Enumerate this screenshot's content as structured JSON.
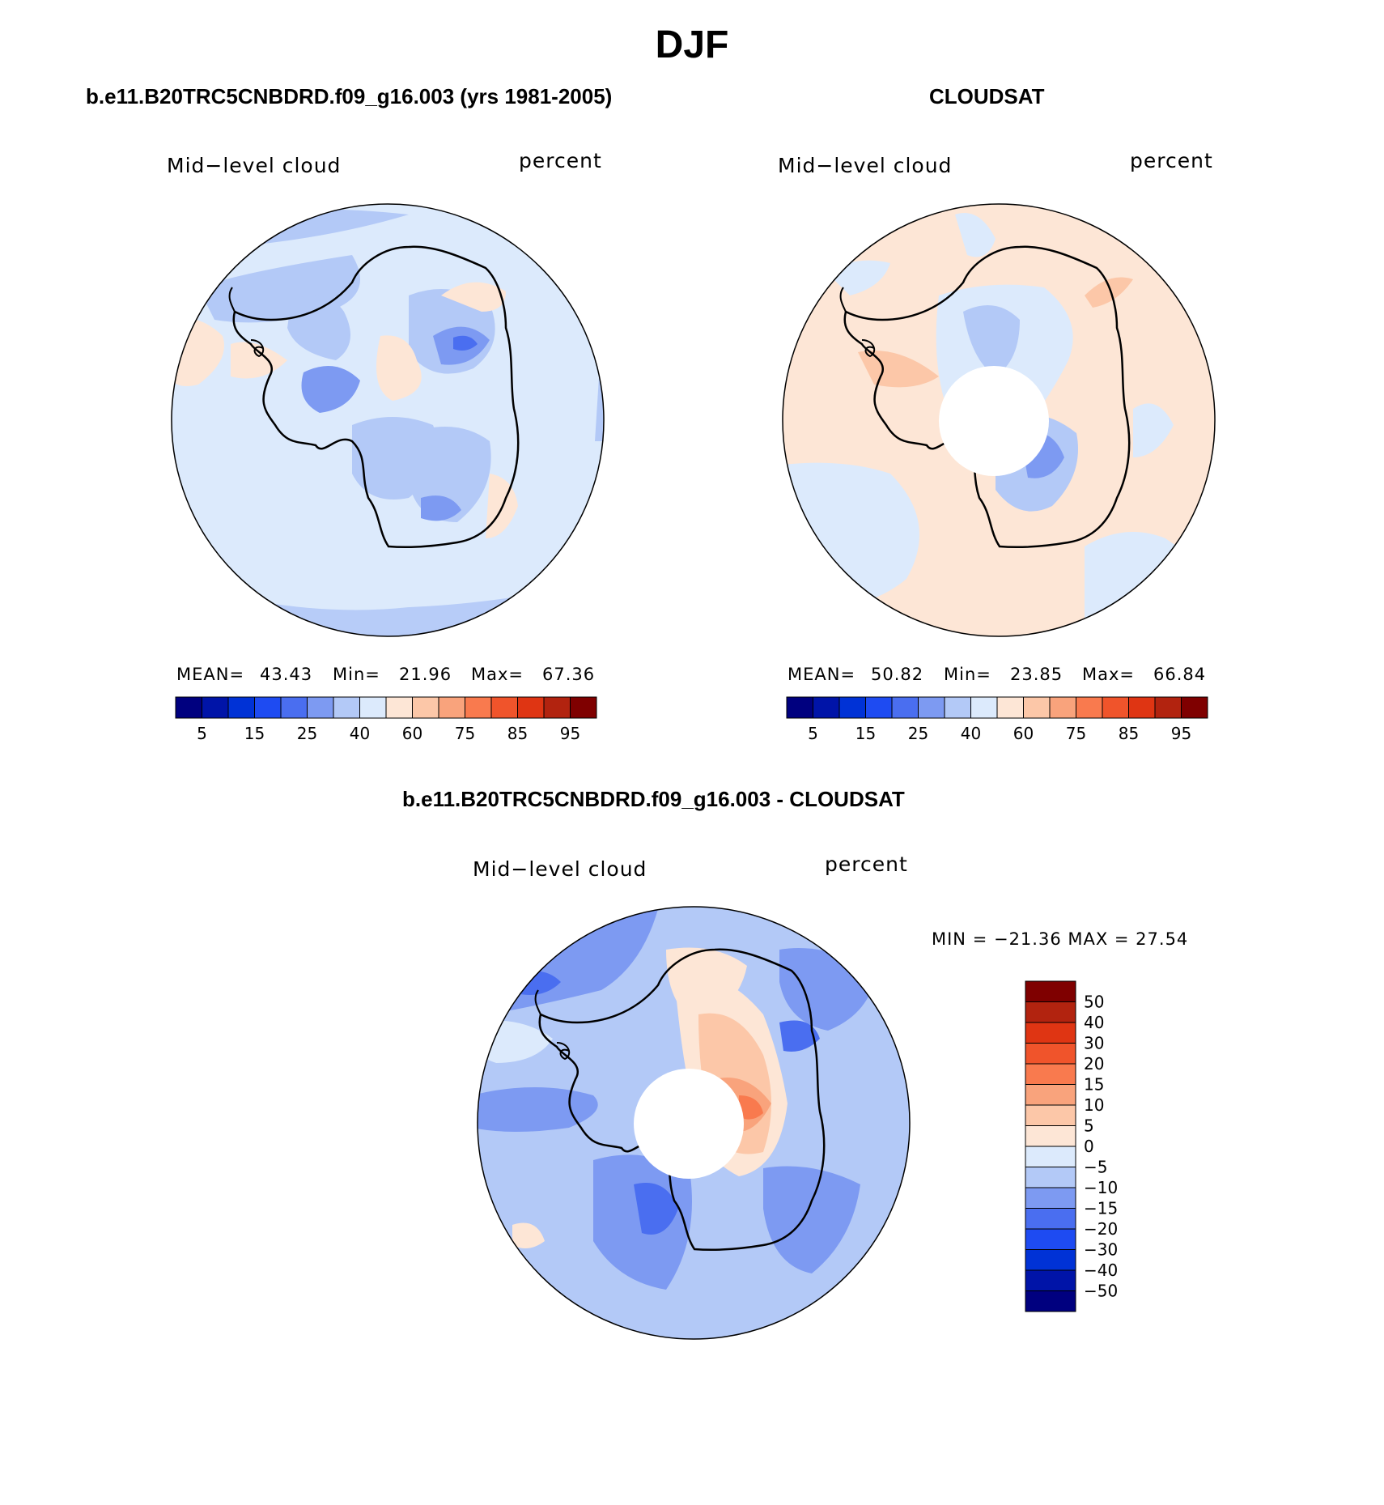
{
  "figure": {
    "title": "DJF"
  },
  "colors": {
    "abs_scale": [
      "#00007f",
      "#0014a8",
      "#0032d6",
      "#1e4bf2",
      "#4a6ef0",
      "#7d9af2",
      "#b3c9f7",
      "#dceafc",
      "#fde6d6",
      "#fcc7a8",
      "#f9a37c",
      "#f97a4e",
      "#f0542b",
      "#df3513",
      "#b2230f",
      "#7f0000"
    ],
    "diff_scale": [
      "#00007f",
      "#0014a8",
      "#0032d6",
      "#1e4bf2",
      "#4a6ef0",
      "#7d9af2",
      "#b3c9f7",
      "#dceafc",
      "#fde6d6",
      "#fcc7a8",
      "#f9a37c",
      "#f97a4e",
      "#f0542b",
      "#df3513",
      "#b2230f",
      "#7f0000"
    ],
    "land_outline": "#000000"
  },
  "panels": [
    {
      "title": "b.e11.B20TRC5CNBDRD.f09_g16.003 (yrs 1981-2005)",
      "variable_label": "Mid−level cloud",
      "units_label": "percent",
      "stats": {
        "mean_label": "MEAN=",
        "mean": "43.43",
        "min_label": "Min=",
        "min": "21.96",
        "max_label": "Max=",
        "max": "67.36"
      },
      "colorbar_ticks": [
        "5",
        "15",
        "25",
        "40",
        "60",
        "75",
        "85",
        "95"
      ]
    },
    {
      "title": "CLOUDSAT",
      "variable_label": "Mid−level cloud",
      "units_label": "percent",
      "stats": {
        "mean_label": "MEAN=",
        "mean": "50.82",
        "min_label": "Min=",
        "min": "23.85",
        "max_label": "Max=",
        "max": "66.84"
      },
      "colorbar_ticks": [
        "5",
        "15",
        "25",
        "40",
        "60",
        "75",
        "85",
        "95"
      ]
    },
    {
      "title": "b.e11.B20TRC5CNBDRD.f09_g16.003 - CLOUDSAT",
      "variable_label": "Mid−level cloud",
      "units_label": "percent",
      "minmax_text": "MIN = −21.36 MAX =   27.54",
      "colorbar_ticks": [
        "50",
        "40",
        "30",
        "20",
        "15",
        "10",
        "5",
        "0",
        "−5",
        "−10",
        "−15",
        "−20",
        "−30",
        "−40",
        "−50"
      ]
    }
  ],
  "chart_data": [
    {
      "type": "heatmap",
      "projection": "south polar stereographic",
      "title": "b.e11.B20TRC5CNBDRD.f09_g16.003 (yrs 1981-2005)",
      "variable": "Mid−level cloud",
      "units": "percent",
      "mean": 43.43,
      "min": 21.96,
      "max": 67.36,
      "contour_levels": [
        5,
        10,
        15,
        20,
        25,
        30,
        40,
        50,
        60,
        70,
        75,
        80,
        85,
        90,
        95
      ],
      "colorbar_tick_labels": [
        "5",
        "15",
        "25",
        "40",
        "60",
        "75",
        "85",
        "95"
      ]
    },
    {
      "type": "heatmap",
      "projection": "south polar stereographic",
      "title": "CLOUDSAT",
      "variable": "Mid−level cloud",
      "units": "percent",
      "mean": 50.82,
      "min": 23.85,
      "max": 66.84,
      "contour_levels": [
        5,
        10,
        15,
        20,
        25,
        30,
        40,
        50,
        60,
        70,
        75,
        80,
        85,
        90,
        95
      ],
      "colorbar_tick_labels": [
        "5",
        "15",
        "25",
        "40",
        "60",
        "75",
        "85",
        "95"
      ],
      "missing_data_region": "polar cap near South Pole"
    },
    {
      "type": "heatmap",
      "projection": "south polar stereographic",
      "title": "b.e11.B20TRC5CNBDRD.f09_g16.003 - CLOUDSAT",
      "variable": "Mid−level cloud",
      "units": "percent",
      "min": -21.36,
      "max": 27.54,
      "contour_levels": [
        -50,
        -40,
        -30,
        -20,
        -15,
        -10,
        -5,
        0,
        5,
        10,
        15,
        20,
        30,
        40,
        50
      ],
      "missing_data_region": "polar cap near South Pole"
    }
  ]
}
